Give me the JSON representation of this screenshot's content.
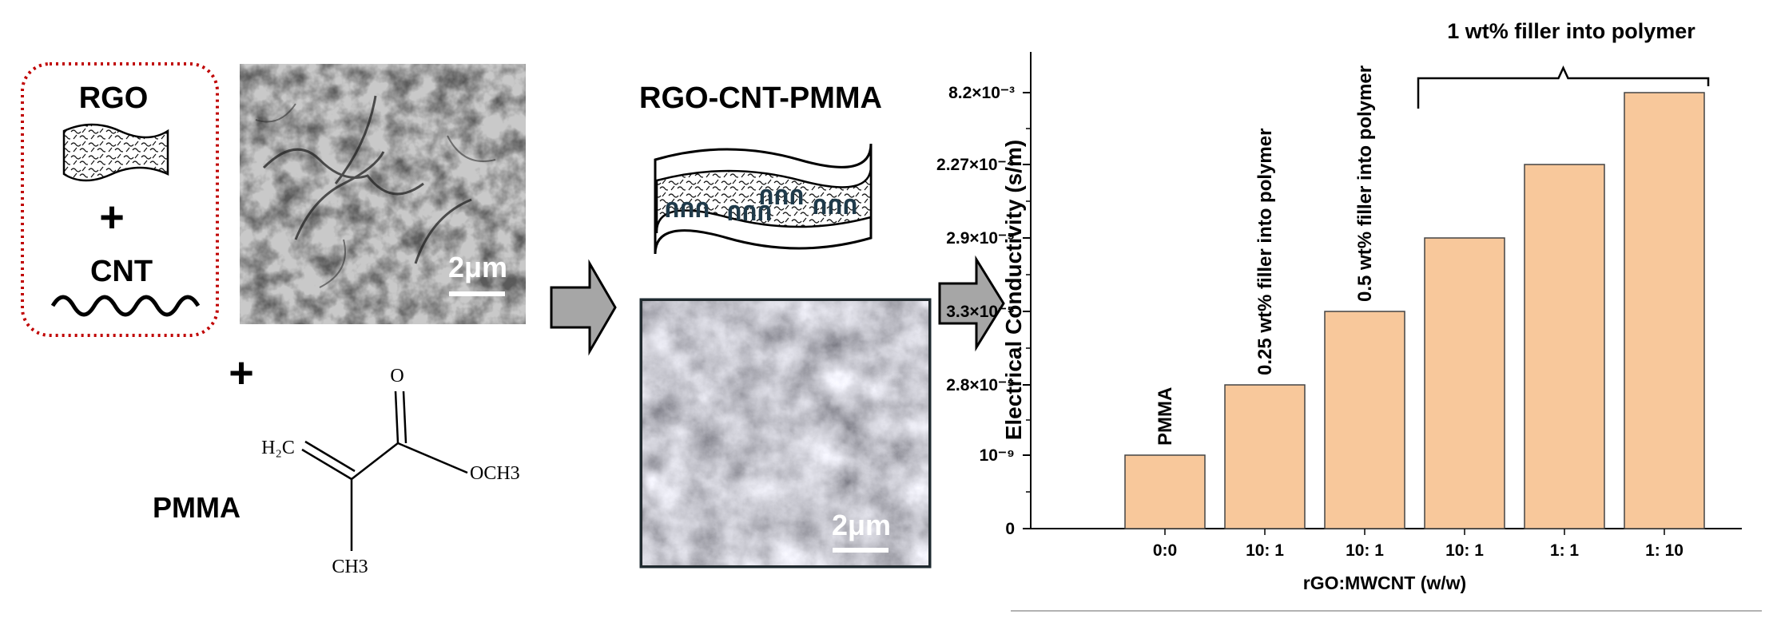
{
  "materials": {
    "rgo_label": "RGO",
    "plus_inner": "+",
    "cnt_label": "CNT",
    "plus_outer": "+",
    "pmma_label": "PMMA"
  },
  "micrographs": {
    "left_scale": "2μm",
    "right_scale": "2μm"
  },
  "monomer": {
    "ch2_label": "H₂C",
    "o_label": "O",
    "och3_label": "OCH3",
    "ch3_label": "CH3"
  },
  "composite": {
    "title": "RGO-CNT-PMMA",
    "cnt_glyph": "ՈՈՈ"
  },
  "colors": {
    "bar_fill": "#f8c89b",
    "bar_edge": "#444444",
    "arrow_fill": "#a6a6a6",
    "dotted_border": "#c00000"
  },
  "chart_data": {
    "type": "bar",
    "ylabel": "Electrical Conductivity (s/m)",
    "xlabel": "rGO:MWCNT (w/w)",
    "categories": [
      "0:0",
      "10: 1",
      "10: 1",
      "10: 1",
      "1: 1",
      "1: 10"
    ],
    "y_tick_labels": [
      "0",
      "10⁻⁹",
      "2.8×10⁻⁵",
      "3.3×10⁻⁵",
      "2.9×10⁻⁵",
      "2.27×10⁻⁴",
      "8.2×10⁻³"
    ],
    "bar_levels": [
      1,
      2,
      3,
      4,
      5,
      6
    ],
    "bar_labels": [
      "PMMA",
      "0.25 wt% filler into polymer",
      "0.5 wt% filler into polymer",
      "",
      "",
      ""
    ],
    "bracket_label": "1 wt% filler into polymer",
    "bracket_bars": [
      3,
      5
    ]
  }
}
